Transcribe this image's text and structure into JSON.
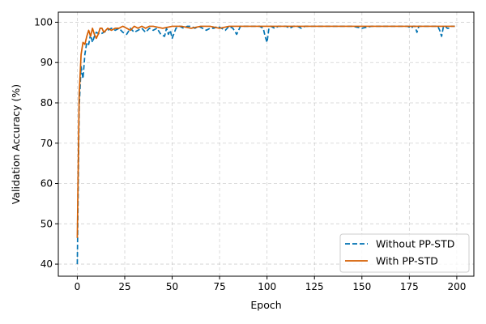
{
  "chart_data": {
    "type": "line",
    "xlabel": "Epoch",
    "ylabel": "Validation Accuracy (%)",
    "xlim": [
      -10,
      209
    ],
    "ylim": [
      37,
      102.5
    ],
    "xticks": [
      0,
      25,
      50,
      75,
      100,
      125,
      150,
      175,
      200
    ],
    "yticks": [
      40,
      50,
      60,
      70,
      80,
      90,
      100
    ],
    "grid": true,
    "legend_position": "lower-right",
    "series": [
      {
        "name": "Without PP-STD",
        "color": "#0072b2",
        "style": "dashed",
        "x": [
          0,
          1,
          2,
          3,
          4,
          5,
          6,
          7,
          8,
          9,
          10,
          12,
          14,
          16,
          18,
          20,
          22,
          24,
          26,
          28,
          30,
          32,
          34,
          36,
          38,
          40,
          42,
          44,
          46,
          47,
          48,
          49,
          50,
          52,
          54,
          56,
          58,
          60,
          62,
          64,
          66,
          68,
          70,
          72,
          74,
          76,
          78,
          80,
          82,
          84,
          86,
          88,
          90,
          92,
          94,
          96,
          98,
          99,
          100,
          101,
          102,
          104,
          106,
          108,
          110,
          112,
          114,
          116,
          118,
          120,
          125,
          130,
          135,
          140,
          145,
          150,
          155,
          160,
          165,
          170,
          172,
          174,
          176,
          177,
          178,
          179,
          180,
          182,
          184,
          186,
          188,
          190,
          191,
          192,
          193,
          194,
          195,
          196,
          197,
          198,
          199
        ],
        "values": [
          40.0,
          79.0,
          89.0,
          86.0,
          92.0,
          95.0,
          94.5,
          97.0,
          95.0,
          96.5,
          97.5,
          97.0,
          97.5,
          98.0,
          98.5,
          98.0,
          98.5,
          97.5,
          97.0,
          98.5,
          97.5,
          98.0,
          98.5,
          97.5,
          98.5,
          98.0,
          98.5,
          97.0,
          96.5,
          98.5,
          97.0,
          98.0,
          96.0,
          98.5,
          99.0,
          98.5,
          99.0,
          99.0,
          98.5,
          99.0,
          98.5,
          98.0,
          98.5,
          98.5,
          99.0,
          98.5,
          98.0,
          99.0,
          98.5,
          97.0,
          99.0,
          99.0,
          99.0,
          99.0,
          99.0,
          99.0,
          98.5,
          96.5,
          95.0,
          98.5,
          99.0,
          98.5,
          99.0,
          99.0,
          99.0,
          98.5,
          99.0,
          99.0,
          98.5,
          99.0,
          99.0,
          99.0,
          99.0,
          99.0,
          99.0,
          98.5,
          99.0,
          99.0,
          99.0,
          99.0,
          99.0,
          99.0,
          98.5,
          99.0,
          99.0,
          97.5,
          99.0,
          99.0,
          99.0,
          99.0,
          99.0,
          99.0,
          98.0,
          96.5,
          99.0,
          99.0,
          98.5,
          98.5,
          99.0,
          99.0,
          99.0
        ]
      },
      {
        "name": "With PP-STD",
        "color": "#d55e00",
        "style": "solid",
        "x": [
          0,
          1,
          2,
          3,
          4,
          5,
          6,
          7,
          8,
          9,
          10,
          11,
          12,
          13,
          14,
          16,
          18,
          20,
          22,
          24,
          26,
          28,
          30,
          32,
          34,
          36,
          38,
          40,
          45,
          50,
          55,
          60,
          65,
          70,
          75,
          80,
          85,
          90,
          95,
          100,
          110,
          120,
          130,
          140,
          150,
          160,
          170,
          180,
          190,
          199
        ],
        "values": [
          46.5,
          82.0,
          92.0,
          95.0,
          94.5,
          96.5,
          98.0,
          96.5,
          98.5,
          97.0,
          96.0,
          97.0,
          98.5,
          98.5,
          97.5,
          98.5,
          98.0,
          98.5,
          98.5,
          99.0,
          98.5,
          98.0,
          99.0,
          98.5,
          99.0,
          98.5,
          99.0,
          99.0,
          98.5,
          99.0,
          99.0,
          98.5,
          99.0,
          99.0,
          98.5,
          99.0,
          99.0,
          99.0,
          99.0,
          99.0,
          99.0,
          99.0,
          99.0,
          99.0,
          99.0,
          99.0,
          99.0,
          99.0,
          99.0,
          99.0
        ]
      }
    ]
  }
}
